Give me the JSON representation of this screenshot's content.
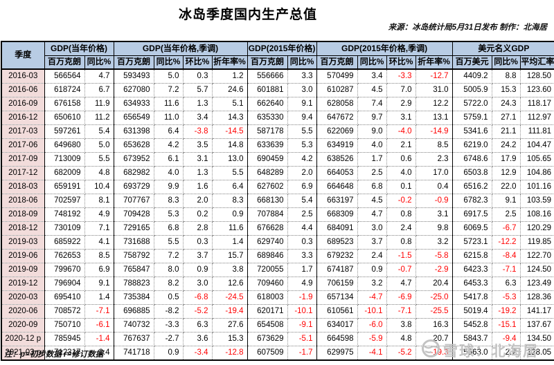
{
  "title": "冰岛季度国内生产总值",
  "source_note": "来源：冰岛统计局5月31日发布 制作：北海居",
  "footnote": "注：p=初步数据 r=修订数据",
  "watermark_text": "雪球：北海居",
  "colors": {
    "header_bg": "#B8CCE4",
    "quarter_col_bg": "#F2DCDB",
    "negative_text": "#FF0000",
    "border": "#000000"
  },
  "chart_data": {
    "type": "table",
    "title": "冰岛季度国内生产总值",
    "source": "来源：冰岛统计局5月31日发布 制作：北海居",
    "quarter_header": "季度",
    "column_groups": [
      {
        "label": "GDP(当年价格)",
        "subs": [
          "百万克朗",
          "同比%"
        ]
      },
      {
        "label": "GDP(当年价格,季调)",
        "subs": [
          "百万克朗",
          "同比%",
          "环比%",
          "折年率%"
        ]
      },
      {
        "label": "GDP(2015年价格)",
        "subs": [
          "百万克朗",
          "同比%"
        ]
      },
      {
        "label": "GDP(2015年价格,季调)",
        "subs": [
          "百万克朗",
          "同比%",
          "环比%",
          "折年率%"
        ]
      },
      {
        "label": "美元名义GDP",
        "subs": [
          "百万美元",
          "同比%",
          "平均汇率"
        ]
      }
    ],
    "rows": [
      {
        "quarter": "2016-03",
        "values": [
          "566564",
          "4.7",
          "593493",
          "5.0",
          "0.3",
          "1.2",
          "556666",
          "3.3",
          "570499",
          "3.4",
          "-3.3",
          "-12.7",
          "4409.2",
          "8.8",
          "128.50"
        ]
      },
      {
        "quarter": "2016-06",
        "values": [
          "618724",
          "6.7",
          "627080",
          "7.2",
          "5.7",
          "24.6",
          "601881",
          "3.0",
          "610287",
          "4.5",
          "7.0",
          "31.0",
          "5005.9",
          "15.3",
          "123.60"
        ]
      },
      {
        "quarter": "2016-09",
        "values": [
          "676158",
          "11.9",
          "634933",
          "11.6",
          "1.3",
          "5.1",
          "662640",
          "9.1",
          "628058",
          "7.4",
          "2.9",
          "12.2",
          "5722.0",
          "24.3",
          "118.17"
        ]
      },
      {
        "quarter": "2016-12",
        "values": [
          "650610",
          "11.2",
          "656549",
          "11.0",
          "3.4",
          "14.3",
          "635330",
          "9.4",
          "647672",
          "9.7",
          "3.1",
          "13.1",
          "5759.1",
          "27.1",
          "112.97"
        ]
      },
      {
        "quarter": "2017-03",
        "values": [
          "597261",
          "5.4",
          "631398",
          "6.4",
          "-3.8",
          "-14.5",
          "587178",
          "5.5",
          "622069",
          "9.0",
          "-4.0",
          "-14.9",
          "5341.6",
          "21.1",
          "111.81"
        ]
      },
      {
        "quarter": "2017-06",
        "values": [
          "649680",
          "5.0",
          "653628",
          "4.2",
          "3.5",
          "14.8",
          "633639",
          "5.3",
          "634919",
          "4.0",
          "2.1",
          "8.5",
          "6219.0",
          "24.2",
          "104.47"
        ]
      },
      {
        "quarter": "2017-09",
        "values": [
          "713009",
          "5.5",
          "673952",
          "6.1",
          "3.1",
          "13.0",
          "690459",
          "4.2",
          "638526",
          "1.7",
          "0.6",
          "2.3",
          "6748.6",
          "17.9",
          "105.65"
        ]
      },
      {
        "quarter": "2017-12",
        "values": [
          "682009",
          "4.8",
          "682982",
          "4.0",
          "1.3",
          "5.5",
          "648289",
          "2.0",
          "664053",
          "2.5",
          "4.0",
          "17.0",
          "6503.8",
          "12.9",
          "104.86"
        ]
      },
      {
        "quarter": "2018-03",
        "values": [
          "659191",
          "10.4",
          "693729",
          "9.9",
          "1.6",
          "6.4",
          "627602",
          "6.9",
          "664648",
          "6.8",
          "0.1",
          "0.4",
          "6516.2",
          "22.0",
          "101.16"
        ]
      },
      {
        "quarter": "2018-06",
        "values": [
          "702597",
          "8.1",
          "707767",
          "8.3",
          "2.0",
          "8.3",
          "668130",
          "5.4",
          "663197",
          "4.5",
          "-0.2",
          "-0.9",
          "6782.3",
          "9.1",
          "103.59"
        ]
      },
      {
        "quarter": "2018-09",
        "values": [
          "748192",
          "4.9",
          "709428",
          "5.3",
          "0.2",
          "0.9",
          "707884",
          "2.5",
          "668309",
          "4.7",
          "0.8",
          "3.1",
          "6917.5",
          "2.5",
          "108.16"
        ]
      },
      {
        "quarter": "2018-12",
        "values": [
          "730109",
          "7.1",
          "729165",
          "6.8",
          "2.8",
          "11.6",
          "676628",
          "4.4",
          "684091",
          "3.0",
          "2.4",
          "9.8",
          "6069.5",
          "-6.7",
          "120.29"
        ]
      },
      {
        "quarter": "2019-03",
        "values": [
          "685922",
          "4.1",
          "731688",
          "5.5",
          "0.3",
          "1.4",
          "629740",
          "0.3",
          "689523",
          "3.7",
          "0.8",
          "3.2",
          "5723.1",
          "-12.2",
          "119.85"
        ]
      },
      {
        "quarter": "2019-06",
        "values": [
          "762653",
          "8.5",
          "758792",
          "7.2",
          "3.7",
          "15.7",
          "689846",
          "3.3",
          "679232",
          "2.4",
          "-1.5",
          "-5.8",
          "6215.8",
          "-8.4",
          "122.70"
        ]
      },
      {
        "quarter": "2019-09",
        "values": [
          "799670",
          "6.9",
          "765847",
          "8.0",
          "0.9",
          "3.8",
          "720055",
          "1.7",
          "674187",
          "0.9",
          "-0.7",
          "-2.9",
          "6423.3",
          "-7.1",
          "124.50"
        ]
      },
      {
        "quarter": "2019-12",
        "values": [
          "796904",
          "9.1",
          "788823",
          "8.2",
          "3.0",
          "12.6",
          "709460",
          "4.9",
          "706159",
          "3.2",
          "4.7",
          "20.4",
          "6453.3",
          "6.3",
          "123.49"
        ]
      },
      {
        "quarter": "2020-03",
        "values": [
          "695410",
          "1.4",
          "735384",
          "0.5",
          "-6.8",
          "-24.5",
          "618003",
          "-1.9",
          "657134",
          "-4.7",
          "-6.9",
          "-25.0",
          "5417.8",
          "-5.3",
          "128.36"
        ]
      },
      {
        "quarter": "2020-06",
        "values": [
          "708572",
          "-7.1",
          "696885",
          "-8.2",
          "-5.2",
          "-19.4",
          "620171",
          "-10.1",
          "610561",
          "-10.1",
          "-7.1",
          "-25.5",
          "5019.4",
          "-19.2",
          "141.17"
        ]
      },
      {
        "quarter": "2020-09",
        "values": [
          "750710",
          "-6.1",
          "740732",
          "-3.3",
          "6.3",
          "27.6",
          "654508",
          "-9.1",
          "634017",
          "-6.0",
          "3.8",
          "16.3",
          "5452.8",
          "-15.1",
          "137.67"
        ]
      },
      {
        "quarter": "2020-12 p",
        "values": [
          "785945",
          "-1.4",
          "767637",
          "-2.7",
          "3.6",
          "15.3",
          "673629",
          "-5.1",
          "664598",
          "-5.9",
          "4.8",
          "20.7",
          "5843.7",
          "-9.4",
          "134.50"
        ]
      },
      {
        "quarter": "2021-03 p",
        "values": [
          "712317",
          "2.4",
          "741718",
          "0.9",
          "-3.4",
          "-12.8",
          "607509",
          "-1.7",
          "629975",
          "-4.1",
          "-5.2",
          "-19.3",
          "5563.0",
          "2.7",
          "128.05"
        ]
      }
    ],
    "black_negative_cells": [
      [
        17,
        3
      ],
      [
        18,
        3
      ],
      [
        19,
        3
      ]
    ]
  }
}
